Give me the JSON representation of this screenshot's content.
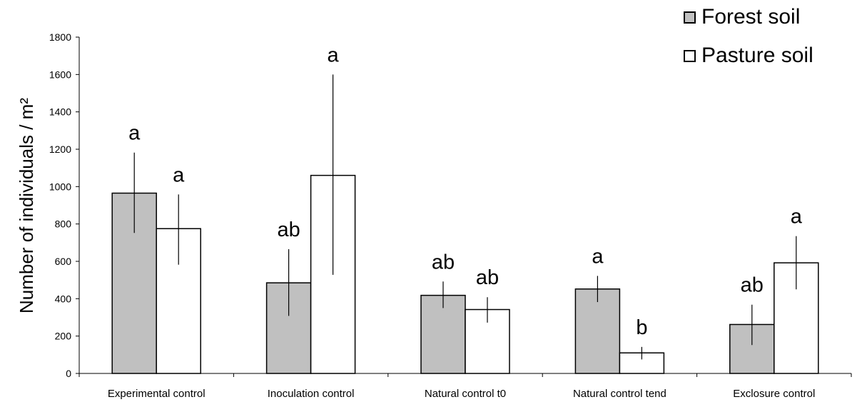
{
  "chart_data": {
    "type": "bar",
    "ylabel": "Number of individuals / m²",
    "xlabel": "",
    "ylim": [
      0,
      1800
    ],
    "yticks": [
      0,
      200,
      400,
      600,
      800,
      1000,
      1200,
      1400,
      1600,
      1800
    ],
    "grid": false,
    "legend_position": "top-right",
    "categories": [
      "Experimental control",
      "Inoculation control",
      "Natural control t0",
      "Natural control tend",
      "Exclosure control"
    ],
    "series": [
      {
        "name": "Forest soil",
        "color": "#c0c0c0",
        "values": [
          965,
          485,
          418,
          452,
          262
        ],
        "error_low": [
          752,
          308,
          350,
          382,
          152
        ],
        "error_high": [
          1182,
          665,
          492,
          522,
          368
        ],
        "labels": [
          "a",
          "ab",
          "ab",
          "a",
          "ab"
        ]
      },
      {
        "name": "Pasture soil",
        "color": "#ffffff",
        "values": [
          775,
          1060,
          342,
          110,
          592
        ],
        "error_low": [
          582,
          528,
          272,
          75,
          450
        ],
        "error_high": [
          958,
          1600,
          408,
          142,
          735
        ],
        "labels": [
          "a",
          "a",
          "ab",
          "b",
          "a"
        ]
      }
    ]
  }
}
